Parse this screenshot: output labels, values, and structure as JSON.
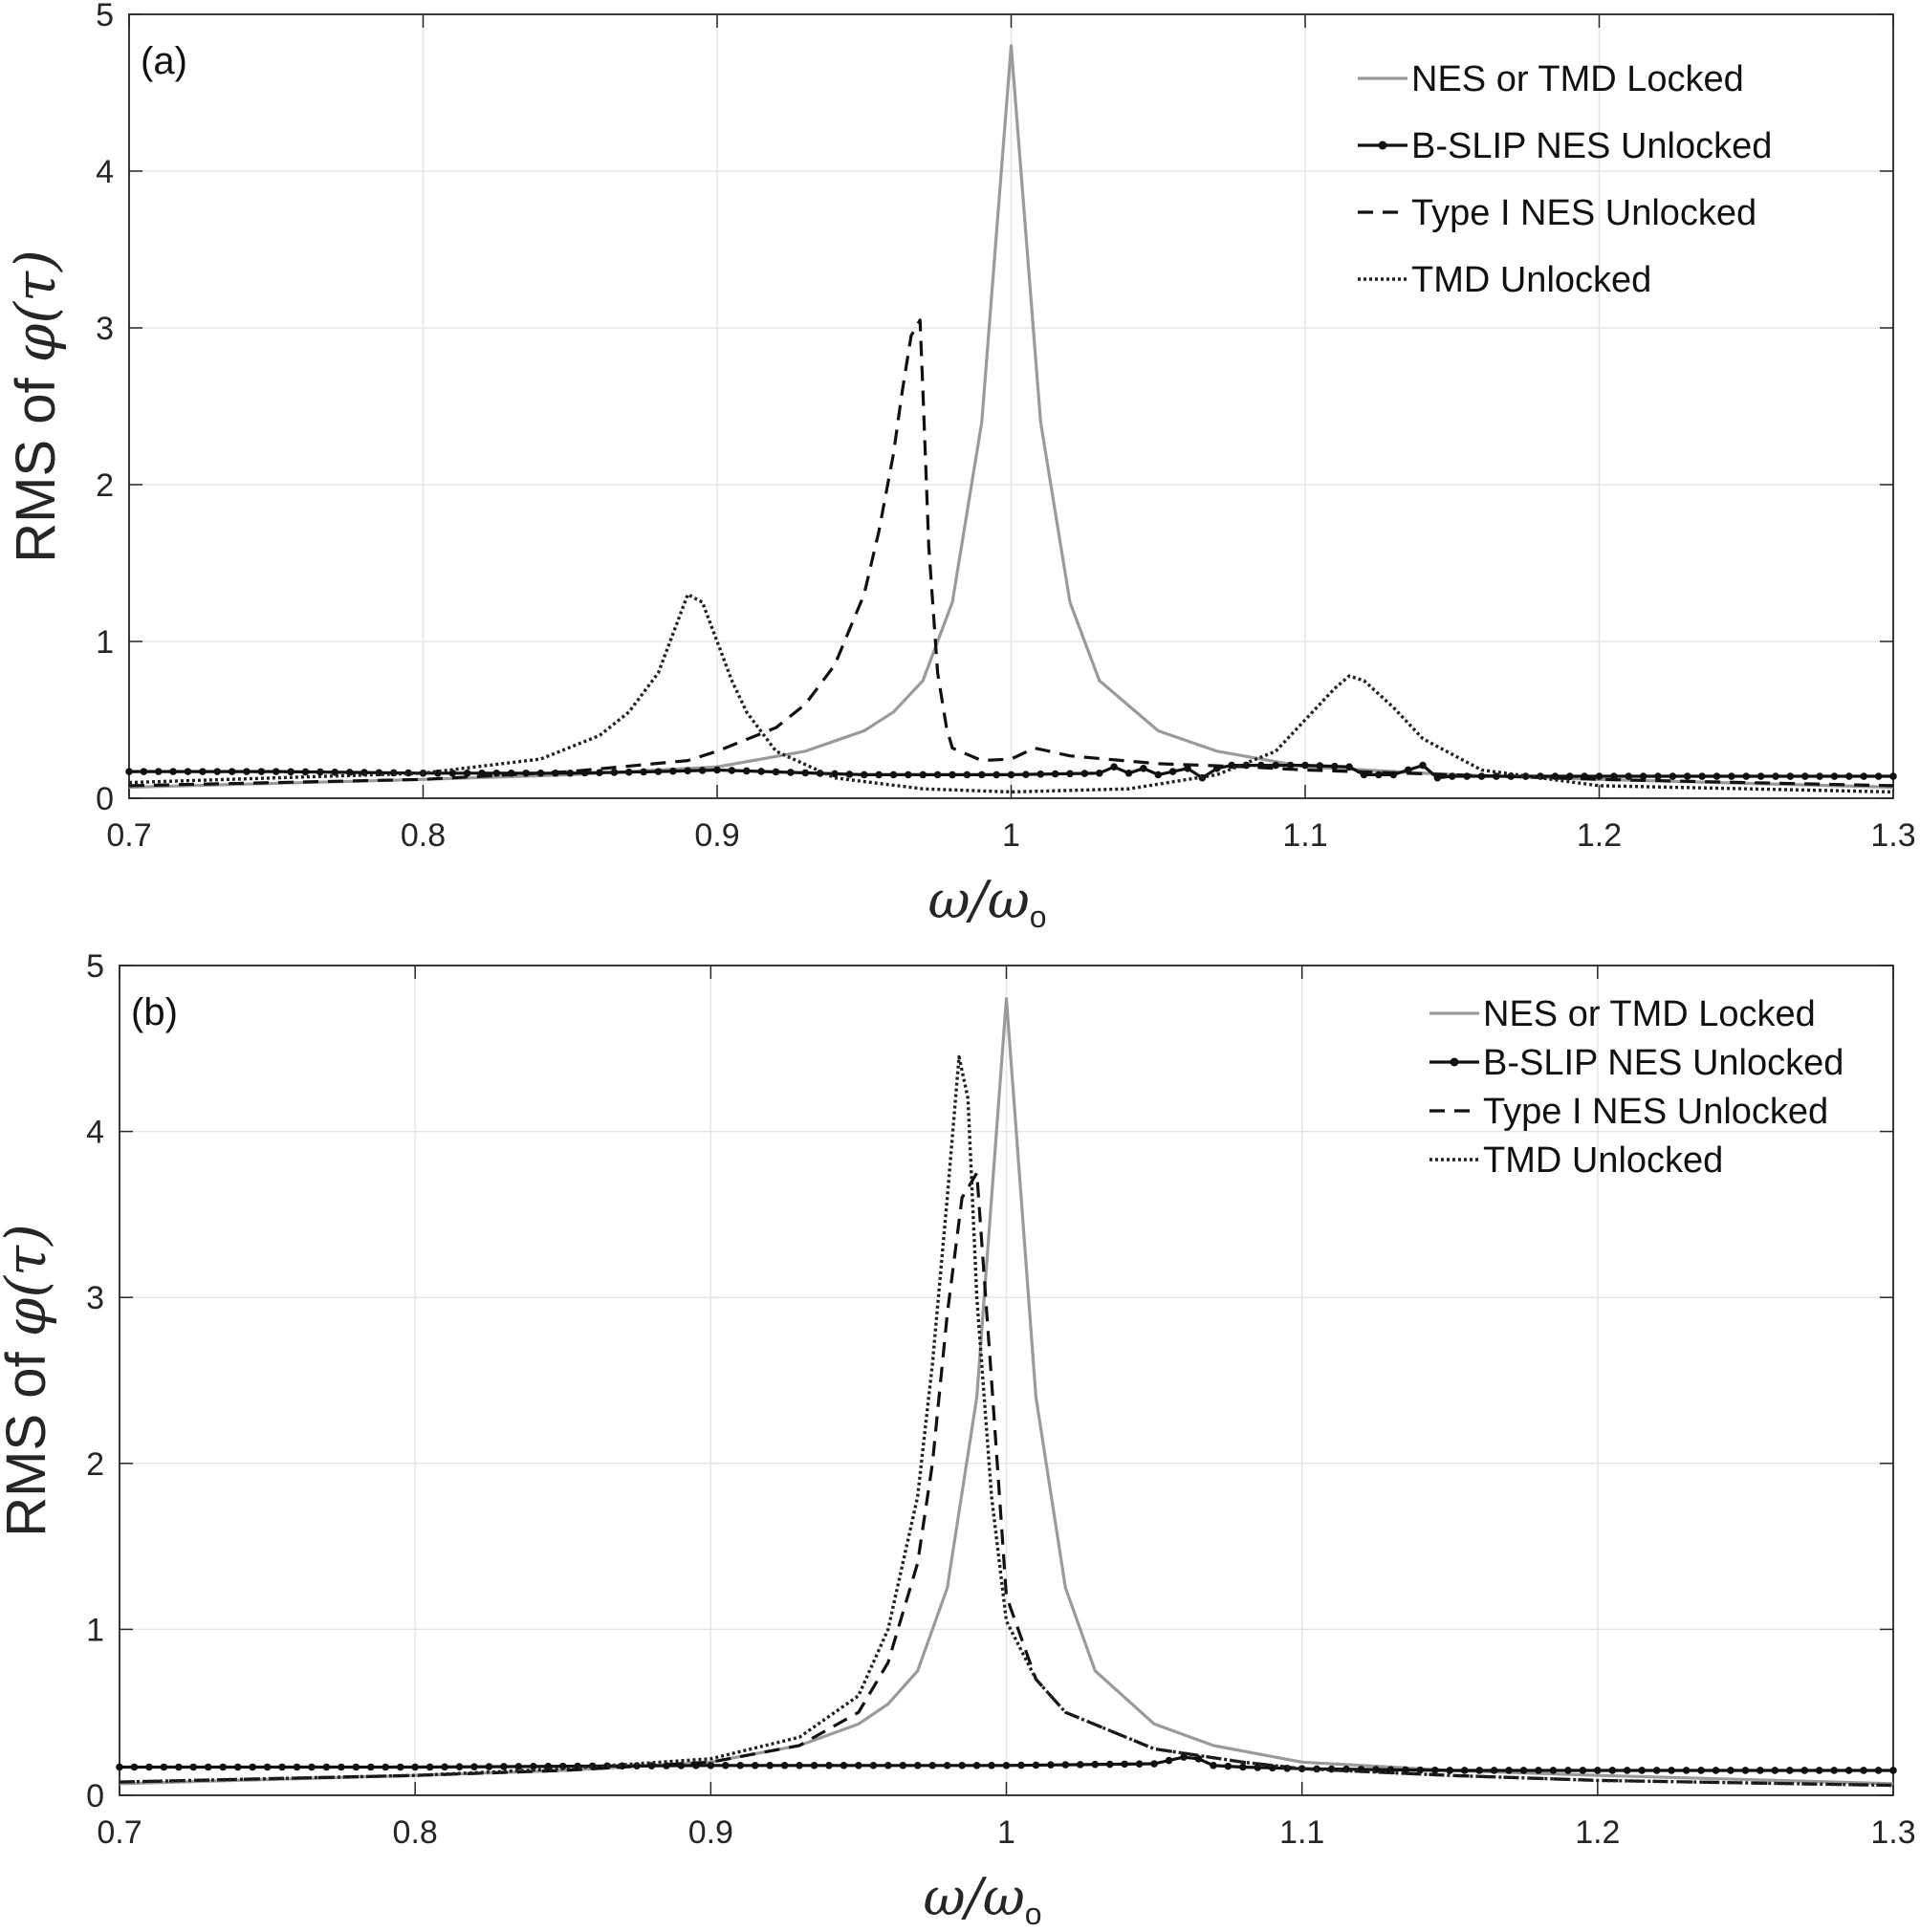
{
  "chart_data": [
    {
      "type": "line",
      "panel_label": "(a)",
      "xlabel": "ω/ω",
      "xlabel_sub": "o",
      "ylabel_prefix": "RMS of ",
      "ylabel_symbol": "φ(τ)",
      "xlim": [
        0.7,
        1.3
      ],
      "ylim": [
        0,
        5
      ],
      "xticks": [
        "0.7",
        "0.8",
        "0.9",
        "1",
        "1.1",
        "1.2",
        "1.3"
      ],
      "yticks": [
        "0",
        "1",
        "2",
        "3",
        "4",
        "5"
      ],
      "grid": true,
      "legend_position": "top-right",
      "series": [
        {
          "name": "NES or TMD Locked",
          "style": "solid-gray",
          "x": [
            0.7,
            0.8,
            0.85,
            0.9,
            0.93,
            0.95,
            0.96,
            0.97,
            0.98,
            0.99,
            0.995,
            1.0,
            1.005,
            1.01,
            1.02,
            1.03,
            1.05,
            1.07,
            1.1,
            1.15,
            1.2,
            1.3
          ],
          "y": [
            0.07,
            0.12,
            0.15,
            0.2,
            0.3,
            0.43,
            0.55,
            0.75,
            1.25,
            2.4,
            3.6,
            4.8,
            3.6,
            2.4,
            1.25,
            0.75,
            0.43,
            0.3,
            0.2,
            0.15,
            0.12,
            0.07
          ]
        },
        {
          "name": "B-SLIP NES Unlocked",
          "style": "solid-dots",
          "x": [
            0.7,
            0.75,
            0.8,
            0.85,
            0.88,
            0.9,
            0.95,
            1.0,
            1.03,
            1.035,
            1.04,
            1.045,
            1.05,
            1.06,
            1.065,
            1.07,
            1.075,
            1.08,
            1.1,
            1.115,
            1.12,
            1.13,
            1.14,
            1.145,
            1.15,
            1.2,
            1.25,
            1.3
          ],
          "y": [
            0.17,
            0.17,
            0.16,
            0.16,
            0.17,
            0.18,
            0.15,
            0.15,
            0.16,
            0.2,
            0.16,
            0.19,
            0.15,
            0.19,
            0.13,
            0.19,
            0.21,
            0.21,
            0.21,
            0.2,
            0.15,
            0.15,
            0.21,
            0.13,
            0.14,
            0.14,
            0.14,
            0.14
          ]
        },
        {
          "name": "Type I NES Unlocked",
          "style": "dashed",
          "x": [
            0.7,
            0.8,
            0.85,
            0.89,
            0.9,
            0.92,
            0.93,
            0.94,
            0.95,
            0.955,
            0.96,
            0.963,
            0.966,
            0.969,
            0.97,
            0.972,
            0.975,
            0.978,
            0.98,
            0.99,
            1.0,
            1.008,
            1.02,
            1.05,
            1.08,
            1.1,
            1.2,
            1.3
          ],
          "y": [
            0.08,
            0.12,
            0.17,
            0.24,
            0.3,
            0.45,
            0.6,
            0.85,
            1.3,
            1.7,
            2.2,
            2.6,
            2.95,
            3.05,
            2.6,
            1.6,
            0.8,
            0.45,
            0.32,
            0.24,
            0.25,
            0.32,
            0.27,
            0.22,
            0.2,
            0.18,
            0.12,
            0.08
          ]
        },
        {
          "name": "TMD Unlocked",
          "style": "dotted",
          "x": [
            0.7,
            0.8,
            0.84,
            0.86,
            0.87,
            0.88,
            0.885,
            0.89,
            0.895,
            0.9,
            0.905,
            0.91,
            0.92,
            0.94,
            0.97,
            1.0,
            1.04,
            1.07,
            1.09,
            1.1,
            1.11,
            1.115,
            1.12,
            1.13,
            1.14,
            1.16,
            1.2,
            1.3
          ],
          "y": [
            0.1,
            0.16,
            0.25,
            0.4,
            0.55,
            0.8,
            1.05,
            1.3,
            1.25,
            1.0,
            0.75,
            0.55,
            0.3,
            0.13,
            0.06,
            0.04,
            0.06,
            0.15,
            0.3,
            0.5,
            0.7,
            0.78,
            0.75,
            0.58,
            0.38,
            0.18,
            0.08,
            0.04
          ]
        }
      ]
    },
    {
      "type": "line",
      "panel_label": "(b)",
      "xlabel": "ω/ω",
      "xlabel_sub": "o",
      "ylabel_prefix": "RMS of ",
      "ylabel_symbol": "φ(τ)",
      "xlim": [
        0.7,
        1.3
      ],
      "ylim": [
        0,
        5
      ],
      "xticks": [
        "0.7",
        "0.8",
        "0.9",
        "1",
        "1.1",
        "1.2",
        "1.3"
      ],
      "yticks": [
        "0",
        "1",
        "2",
        "3",
        "4",
        "5"
      ],
      "grid": true,
      "legend_position": "top-right",
      "series": [
        {
          "name": "NES or TMD Locked",
          "style": "solid-gray",
          "x": [
            0.7,
            0.8,
            0.85,
            0.9,
            0.93,
            0.95,
            0.96,
            0.97,
            0.98,
            0.99,
            0.995,
            1.0,
            1.005,
            1.01,
            1.02,
            1.03,
            1.05,
            1.07,
            1.1,
            1.15,
            1.2,
            1.3
          ],
          "y": [
            0.07,
            0.12,
            0.15,
            0.2,
            0.3,
            0.43,
            0.55,
            0.75,
            1.25,
            2.4,
            3.6,
            4.8,
            3.6,
            2.4,
            1.25,
            0.75,
            0.43,
            0.3,
            0.2,
            0.15,
            0.12,
            0.07
          ]
        },
        {
          "name": "B-SLIP NES Unlocked",
          "style": "solid-dots",
          "x": [
            0.7,
            0.8,
            0.9,
            1.0,
            1.05,
            1.06,
            1.065,
            1.07,
            1.08,
            1.1,
            1.15,
            1.2,
            1.25,
            1.3
          ],
          "y": [
            0.17,
            0.17,
            0.18,
            0.18,
            0.19,
            0.23,
            0.22,
            0.18,
            0.17,
            0.16,
            0.15,
            0.15,
            0.15,
            0.15
          ]
        },
        {
          "name": "Type I NES Unlocked",
          "style": "dashed",
          "x": [
            0.7,
            0.8,
            0.85,
            0.9,
            0.93,
            0.95,
            0.96,
            0.97,
            0.975,
            0.98,
            0.985,
            0.99,
            0.995,
            1.0,
            1.01,
            1.02,
            1.05,
            1.08,
            1.1,
            1.15,
            1.2,
            1.3
          ],
          "y": [
            0.08,
            0.12,
            0.15,
            0.2,
            0.3,
            0.5,
            0.8,
            1.4,
            2.0,
            2.9,
            3.6,
            3.75,
            2.5,
            1.2,
            0.7,
            0.5,
            0.28,
            0.2,
            0.16,
            0.12,
            0.09,
            0.06
          ]
        },
        {
          "name": "TMD Unlocked",
          "style": "dotted",
          "x": [
            0.7,
            0.8,
            0.85,
            0.9,
            0.93,
            0.95,
            0.96,
            0.97,
            0.975,
            0.98,
            0.984,
            0.987,
            0.99,
            0.995,
            1.0,
            1.01,
            1.02,
            1.05,
            1.08,
            1.1,
            1.15,
            1.2,
            1.3
          ],
          "y": [
            0.08,
            0.12,
            0.16,
            0.22,
            0.35,
            0.6,
            1.0,
            1.8,
            2.6,
            3.6,
            4.45,
            4.2,
            3.0,
            1.8,
            1.05,
            0.7,
            0.5,
            0.28,
            0.2,
            0.16,
            0.12,
            0.09,
            0.06
          ]
        }
      ]
    }
  ]
}
